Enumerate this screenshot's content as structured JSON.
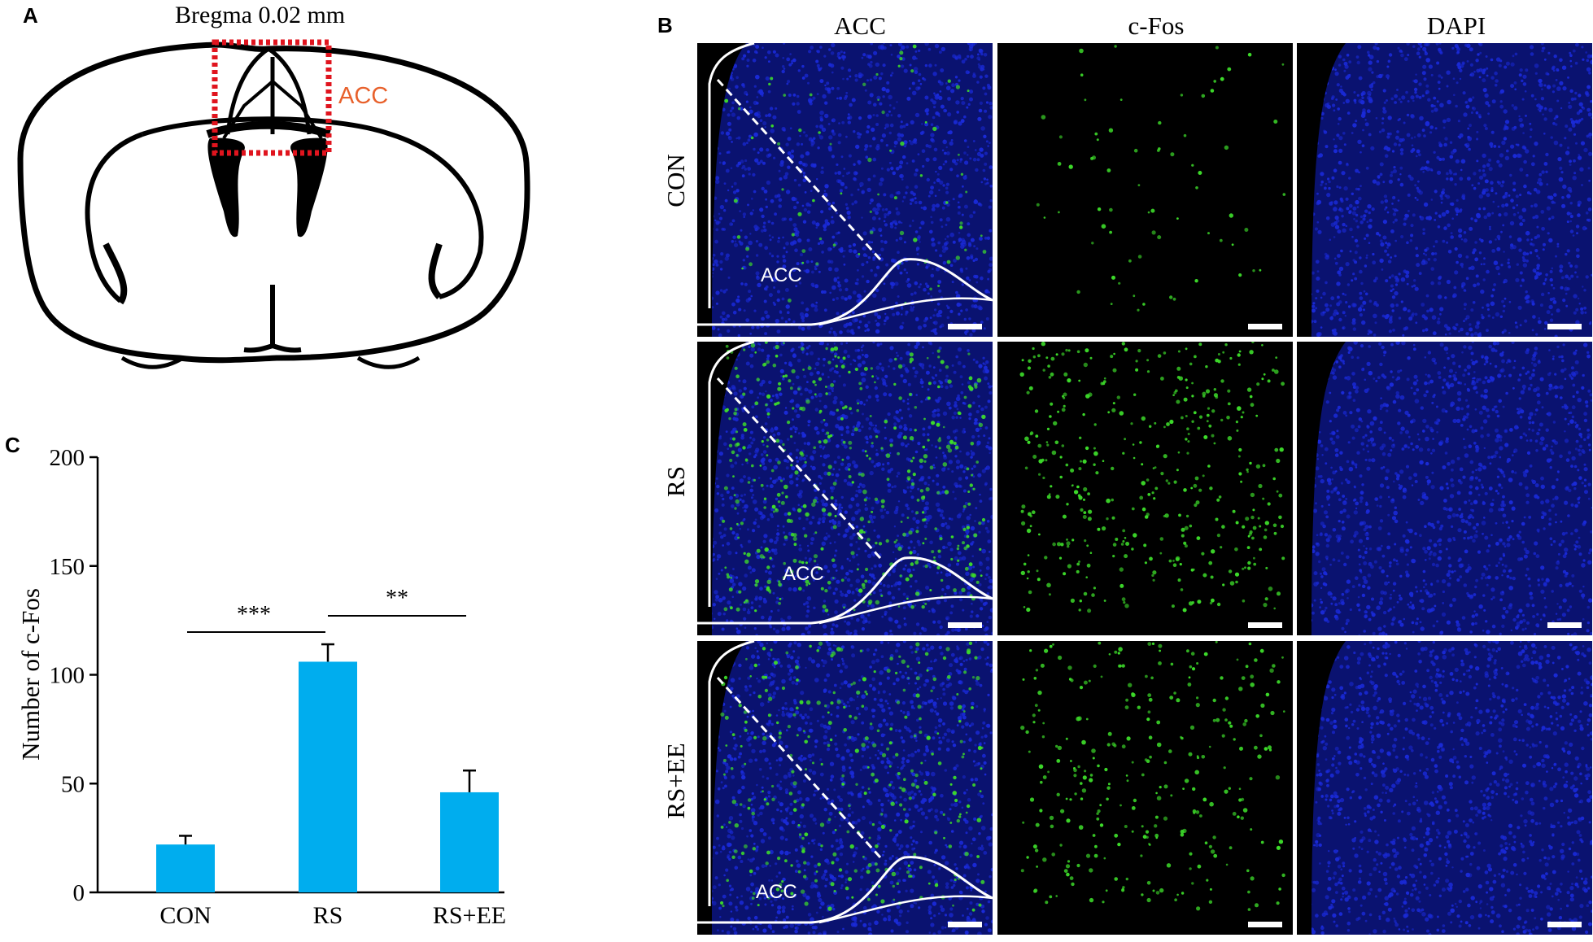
{
  "panel_a": {
    "letter": "A",
    "title": "Bregma 0.02 mm",
    "region_label": "ACC",
    "colors": {
      "outline": "#000000",
      "box": "#e0141e",
      "region_text": "#e8612c"
    }
  },
  "panel_b": {
    "letter": "B",
    "columns": [
      "ACC",
      "c-Fos",
      "DAPI"
    ],
    "rows": [
      "CON",
      "RS",
      "RS+EE"
    ],
    "acc_label": "ACC",
    "colors": {
      "dapi_blue": "#1a2ad8",
      "fos_green": "#3ddc2a",
      "background": "#000000"
    }
  },
  "panel_c": {
    "letter": "C",
    "significance": {
      "con_rs": "***",
      "rs_rsee": "**"
    }
  },
  "chart_data": {
    "type": "bar",
    "categories": [
      "CON",
      "RS",
      "RS+EE"
    ],
    "values": [
      22,
      106,
      46
    ],
    "errors": [
      4,
      8,
      10
    ],
    "ylabel": "Number of c-Fos",
    "xlabel": "",
    "ylim": [
      0,
      200
    ],
    "yticks": [
      0,
      50,
      100,
      150,
      200
    ],
    "bar_color": "#00adee",
    "grid": false
  }
}
